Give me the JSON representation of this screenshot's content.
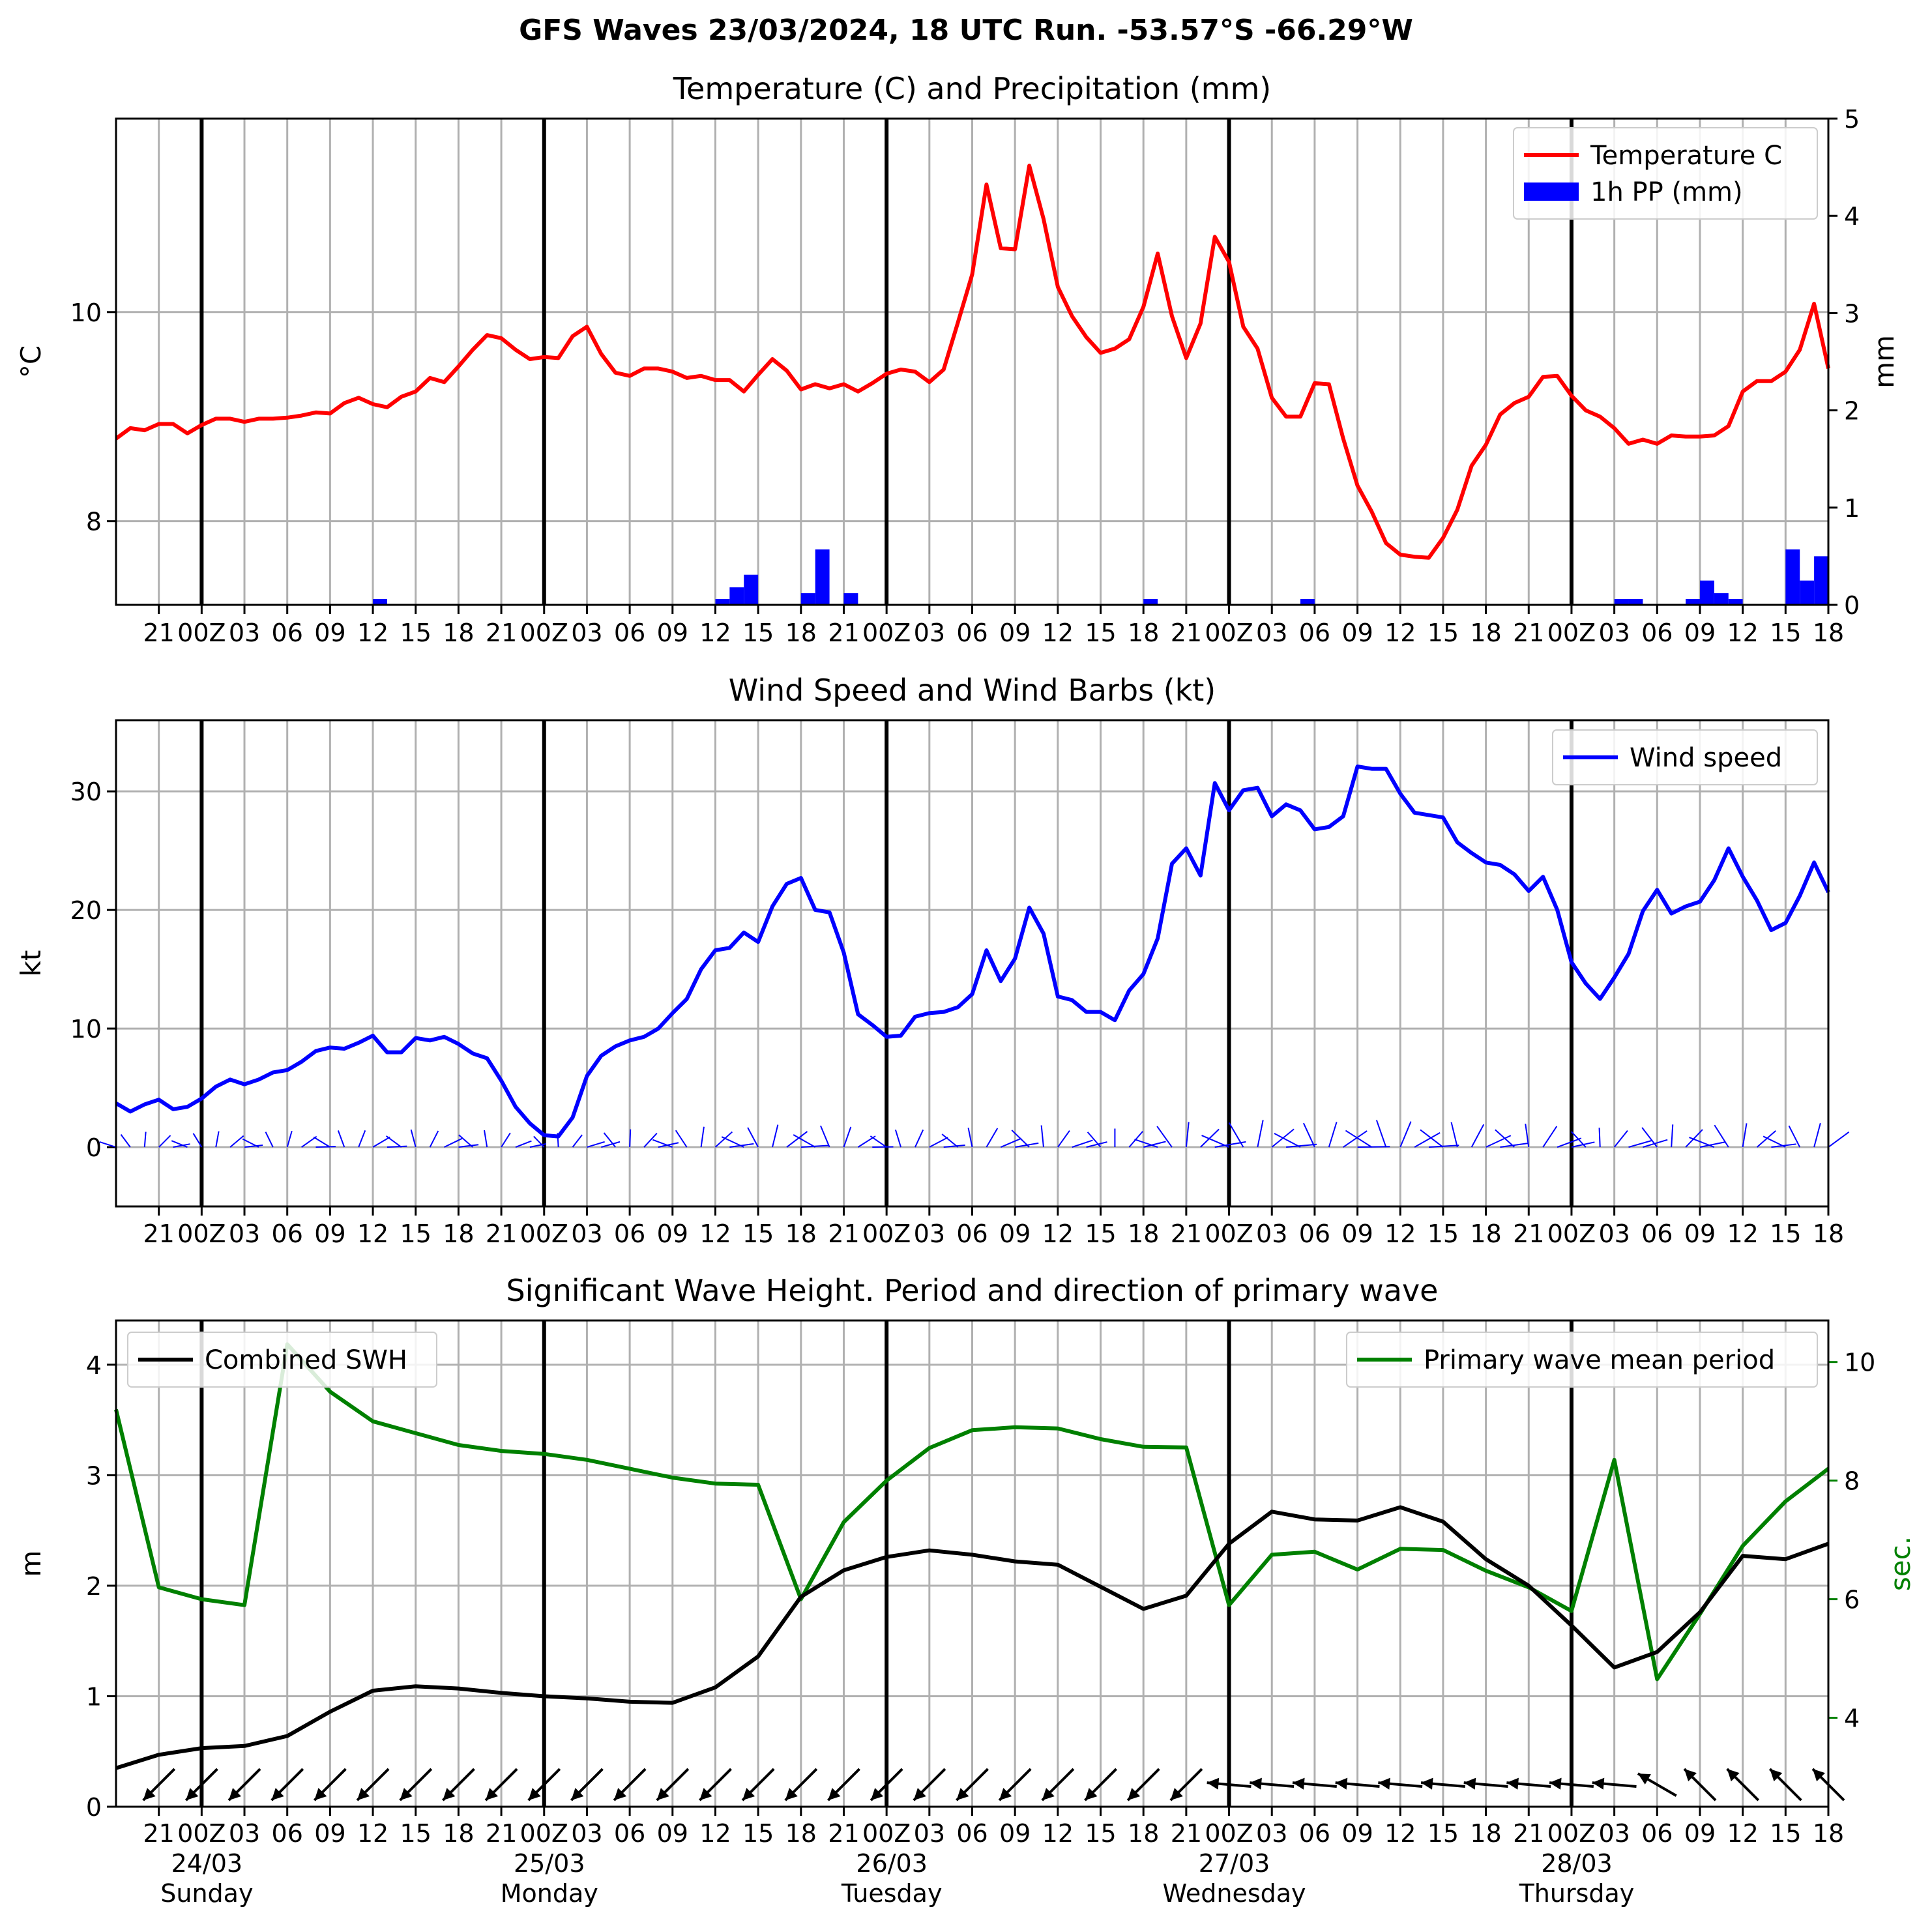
{
  "suptitle": "GFS Waves 23/03/2024, 18 UTC Run. -53.57°S -66.29°W",
  "colors": {
    "temperature": "#ff0000",
    "precip": "#0000ff",
    "wind": "#0000ff",
    "swh": "#000000",
    "period": "#008000",
    "grid": "#b0b0b0",
    "day_line": "#000000"
  },
  "time_axis": {
    "tick_labels": [
      "21",
      "00Z",
      "03",
      "06",
      "09",
      "12",
      "15",
      "18",
      "21",
      "00Z",
      "03",
      "06",
      "09",
      "12",
      "15",
      "18",
      "21",
      "00Z",
      "03",
      "06",
      "09",
      "12",
      "15",
      "18",
      "21",
      "00Z",
      "03",
      "06",
      "09",
      "12",
      "15",
      "18",
      "21",
      "00Z",
      "03",
      "06",
      "09",
      "12",
      "15",
      "18"
    ],
    "day_labels": [
      {
        "date": "24/03",
        "day": "Sunday"
      },
      {
        "date": "25/03",
        "day": "Monday"
      },
      {
        "date": "26/03",
        "day": "Tuesday"
      },
      {
        "date": "27/03",
        "day": "Wednesday"
      },
      {
        "date": "28/03",
        "day": "Thursday"
      }
    ]
  },
  "chart_data": [
    {
      "type": "line",
      "title": "Temperature (C) and Precipitation (mm)",
      "ylabel": "$^\\circ$C",
      "y2label": "mm",
      "ylim": [
        7.2,
        11.85
      ],
      "y2lim": [
        0,
        5
      ],
      "yticks": [
        8,
        10
      ],
      "y2ticks": [
        0,
        1,
        2,
        3,
        4,
        5
      ],
      "legend_position": "top-right",
      "grid": true,
      "x_hours": [
        0,
        120
      ],
      "series": [
        {
          "name": "Temperature C",
          "axis": "left",
          "x": [
            0,
            1,
            2,
            3,
            4,
            5,
            6,
            7,
            8,
            9,
            10,
            11,
            12,
            13,
            14,
            15,
            16,
            17,
            18,
            19,
            20,
            21,
            22,
            23,
            24,
            25,
            26,
            27,
            28,
            29,
            30,
            31,
            32,
            33,
            34,
            35,
            36,
            37,
            38,
            39,
            40,
            41,
            42,
            43,
            44,
            45,
            46,
            47,
            48,
            49,
            50,
            51,
            52,
            53,
            54,
            55,
            56,
            57,
            58,
            59,
            60,
            61,
            62,
            63,
            64,
            65,
            66,
            67,
            68,
            69,
            70,
            71,
            72,
            73,
            74,
            75,
            76,
            77,
            78,
            79,
            80,
            81,
            82,
            83,
            84,
            85,
            86,
            87,
            88,
            89,
            90,
            91,
            92,
            93,
            94,
            95,
            96,
            97,
            98,
            99,
            100,
            101,
            102,
            103,
            104,
            105,
            106,
            107,
            108,
            109,
            110,
            111,
            112,
            113,
            114,
            115,
            116,
            117,
            118,
            119,
            120
          ],
          "values": [
            8.79,
            8.89,
            8.87,
            8.93,
            8.93,
            8.84,
            8.92,
            8.98,
            8.98,
            8.95,
            8.98,
            8.98,
            8.99,
            9.01,
            9.04,
            9.03,
            9.13,
            9.18,
            9.12,
            9.09,
            9.19,
            9.24,
            9.37,
            9.33,
            9.48,
            9.64,
            9.78,
            9.75,
            9.64,
            9.55,
            9.57,
            9.56,
            9.77,
            9.86,
            9.6,
            9.42,
            9.39,
            9.46,
            9.46,
            9.43,
            9.37,
            9.39,
            9.35,
            9.35,
            9.24,
            9.4,
            9.55,
            9.44,
            9.26,
            9.31,
            9.27,
            9.31,
            9.24,
            9.32,
            9.41,
            9.45,
            9.43,
            9.33,
            9.45,
            9.9,
            10.36,
            11.22,
            10.61,
            10.6,
            11.4,
            10.89,
            10.24,
            9.96,
            9.76,
            9.61,
            9.65,
            9.74,
            10.05,
            10.56,
            9.96,
            9.56,
            9.89,
            10.72,
            10.48,
            9.86,
            9.65,
            9.18,
            9.0,
            9.0,
            9.32,
            9.31,
            8.79,
            8.34,
            8.09,
            7.79,
            7.68,
            7.66,
            7.65,
            7.84,
            8.11,
            8.53,
            8.73,
            9.02,
            9.13,
            9.19,
            9.38,
            9.39,
            9.2,
            9.06,
            9.0,
            8.89,
            8.74,
            8.78,
            8.74,
            8.82,
            8.81,
            8.81,
            8.82,
            8.91,
            9.24,
            9.34,
            9.34,
            9.43,
            9.64,
            10.08,
            9.46
          ]
        },
        {
          "name": "1h PP (mm)",
          "axis": "right",
          "type": "bar",
          "x": [
            18.5,
            42.5,
            43.5,
            44.5,
            48.5,
            49.5,
            51.5,
            72.5,
            83.5,
            105.5,
            106.5,
            110.5,
            111.5,
            112.5,
            113.5,
            117.5,
            118.5,
            119.5
          ],
          "values": [
            0.06,
            0.06,
            0.18,
            0.31,
            0.12,
            0.57,
            0.12,
            0.06,
            0.06,
            0.06,
            0.06,
            0.06,
            0.25,
            0.12,
            0.06,
            0.57,
            0.25,
            0.5
          ]
        }
      ]
    },
    {
      "type": "line",
      "title": "Wind Speed and Wind Barbs (kt)",
      "ylabel": "kt",
      "ylim": [
        -5,
        36
      ],
      "yticks": [
        0,
        10,
        20,
        30
      ],
      "legend_position": "top-right",
      "grid": true,
      "series": [
        {
          "name": "Wind speed",
          "x": [
            0,
            1,
            2,
            3,
            4,
            5,
            6,
            7,
            8,
            9,
            10,
            11,
            12,
            13,
            14,
            15,
            16,
            17,
            18,
            19,
            20,
            21,
            22,
            23,
            24,
            25,
            26,
            27,
            28,
            29,
            30,
            31,
            32,
            33,
            34,
            35,
            36,
            37,
            38,
            39,
            40,
            41,
            42,
            43,
            44,
            45,
            46,
            47,
            48,
            49,
            50,
            51,
            52,
            53,
            54,
            55,
            56,
            57,
            58,
            59,
            60,
            61,
            62,
            63,
            64,
            65,
            66,
            67,
            68,
            69,
            70,
            71,
            72,
            73,
            74,
            75,
            76,
            77,
            78,
            79,
            80,
            81,
            82,
            83,
            84,
            85,
            86,
            87,
            88,
            89,
            90,
            91,
            92,
            93,
            94,
            95,
            96,
            97,
            98,
            99,
            100,
            101,
            102,
            103,
            104,
            105,
            106,
            107,
            108,
            109,
            110,
            111,
            112,
            113,
            114,
            115,
            116,
            117,
            118,
            119,
            120
          ],
          "values": [
            3.7,
            3.0,
            3.6,
            4.0,
            3.2,
            3.4,
            4.1,
            5.1,
            5.7,
            5.3,
            5.7,
            6.3,
            6.5,
            7.2,
            8.1,
            8.4,
            8.3,
            8.8,
            9.4,
            8.0,
            8.0,
            9.2,
            9.0,
            9.3,
            8.7,
            7.9,
            7.5,
            5.6,
            3.4,
            2.0,
            1.0,
            0.9,
            2.5,
            6.0,
            7.7,
            8.5,
            9.0,
            9.3,
            10.0,
            11.3,
            12.5,
            15.0,
            16.6,
            16.8,
            18.1,
            17.3,
            20.3,
            22.2,
            22.7,
            20.0,
            19.8,
            16.4,
            11.2,
            10.3,
            9.3,
            9.4,
            11.0,
            11.3,
            11.4,
            11.8,
            12.9,
            16.6,
            14.0,
            15.9,
            20.2,
            18.0,
            12.7,
            12.4,
            11.4,
            11.4,
            10.7,
            13.2,
            14.6,
            17.6,
            23.9,
            25.2,
            22.9,
            30.7,
            28.4,
            30.1,
            30.3,
            27.9,
            28.9,
            28.4,
            26.8,
            27.0,
            27.9,
            32.1,
            31.9,
            31.9,
            29.8,
            28.2,
            28.0,
            27.8,
            25.7,
            24.8,
            24.0,
            23.8,
            23.0,
            21.6,
            22.8,
            20.0,
            15.6,
            13.8,
            12.5,
            14.3,
            16.3,
            19.9,
            21.7,
            19.7,
            20.3,
            20.7,
            22.5,
            25.2,
            22.8,
            20.8,
            18.3,
            18.9,
            21.2,
            24.0,
            21.5
          ]
        }
      ]
    },
    {
      "type": "line",
      "title": "Significant Wave Height. Period and direction of primary wave",
      "ylabel": "m",
      "y2label": "sec.",
      "ylim": [
        0,
        4.4
      ],
      "y2lim": [
        2.5,
        10.7
      ],
      "yticks": [
        0,
        1,
        2,
        3,
        4
      ],
      "y2ticks": [
        4,
        6,
        8,
        10
      ],
      "grid": true,
      "series": [
        {
          "name": "Combined SWH",
          "axis": "left",
          "x": [
            0,
            3,
            6,
            9,
            12,
            15,
            18,
            21,
            24,
            27,
            30,
            33,
            36,
            39,
            42,
            45,
            48,
            51,
            54,
            57,
            60,
            63,
            66,
            69,
            72,
            75,
            78,
            81,
            84,
            87,
            90,
            93,
            96,
            99,
            102,
            105,
            108,
            111,
            114,
            117,
            120
          ],
          "values": [
            0.35,
            0.47,
            0.53,
            0.55,
            0.64,
            0.86,
            1.05,
            1.09,
            1.07,
            1.03,
            1.0,
            0.98,
            0.95,
            0.94,
            1.08,
            1.36,
            1.9,
            2.14,
            2.26,
            2.32,
            2.28,
            2.22,
            2.19,
            1.99,
            1.79,
            1.91,
            2.38,
            2.67,
            2.6,
            2.59,
            2.71,
            2.58,
            2.24,
            2.0,
            1.64,
            1.26,
            1.4,
            1.76,
            2.27,
            2.24,
            2.38
          ]
        },
        {
          "name": "Primary wave mean period",
          "axis": "right",
          "x": [
            0,
            3,
            6,
            9,
            12,
            15,
            18,
            21,
            24,
            27,
            30,
            33,
            36,
            39,
            42,
            45,
            48,
            51,
            54,
            57,
            60,
            63,
            66,
            69,
            72,
            75,
            78,
            81,
            84,
            87,
            90,
            93,
            96,
            99,
            102,
            105,
            108,
            111,
            114,
            117,
            120
          ],
          "values": [
            9.2,
            6.2,
            6.0,
            5.9,
            10.3,
            9.5,
            9.0,
            8.8,
            8.6,
            8.5,
            8.45,
            8.35,
            8.2,
            8.05,
            7.95,
            7.93,
            6.0,
            7.3,
            8.0,
            8.55,
            8.85,
            8.9,
            8.88,
            8.7,
            8.57,
            8.56,
            5.9,
            6.75,
            6.8,
            6.5,
            6.85,
            6.83,
            6.48,
            6.2,
            5.8,
            8.35,
            4.65,
            5.75,
            6.9,
            7.65,
            8.2
          ]
        }
      ],
      "direction_arrows_deg": [
        225,
        225,
        225,
        225,
        225,
        225,
        225,
        225,
        225,
        225,
        225,
        225,
        225,
        225,
        225,
        225,
        225,
        225,
        225,
        225,
        225,
        225,
        225,
        225,
        225,
        225,
        275,
        275,
        275,
        275,
        275,
        275,
        275,
        275,
        275,
        275,
        300,
        315,
        315,
        315,
        315
      ]
    }
  ]
}
